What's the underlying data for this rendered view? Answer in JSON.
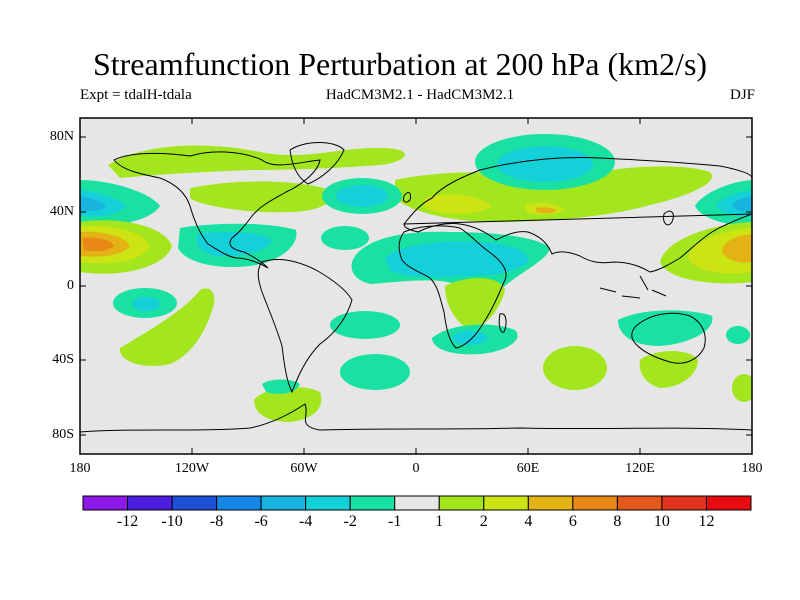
{
  "title": "Streamfunction Perturbation at 200 hPa (km2/s)",
  "subtitle_left": "Expt = tdalH-tdala",
  "subtitle_center": "HadCM3M2.1 - HadCM3M2.1",
  "subtitle_right": "DJF",
  "y_axis": [
    "80N",
    "40N",
    "0",
    "40S",
    "80S"
  ],
  "x_axis": [
    "180",
    "120W",
    "60W",
    "0",
    "60E",
    "120E",
    "180"
  ],
  "colorbar": {
    "labels": [
      "-12",
      "-10",
      "-8",
      "-6",
      "-4",
      "-2",
      "-1",
      "1",
      "2",
      "4",
      "6",
      "8",
      "10",
      "12"
    ],
    "colors": [
      "#8d19e6",
      "#4b1ee0",
      "#1e4fd8",
      "#1587e6",
      "#16b4df",
      "#14d0d8",
      "#19e1a2",
      "#e6e6e6",
      "#a4e61e",
      "#cce314",
      "#e3b214",
      "#e78817",
      "#e4581b",
      "#e1331d",
      "#e60b10"
    ]
  },
  "map_colors": {
    "background": "#e6e6e6",
    "neg1": "#19e1a2",
    "neg2": "#14d0d8",
    "neg4": "#16b4df",
    "pos1": "#a4e61e",
    "pos2": "#cce314",
    "pos4": "#e3b214",
    "pos6": "#e78817"
  }
}
